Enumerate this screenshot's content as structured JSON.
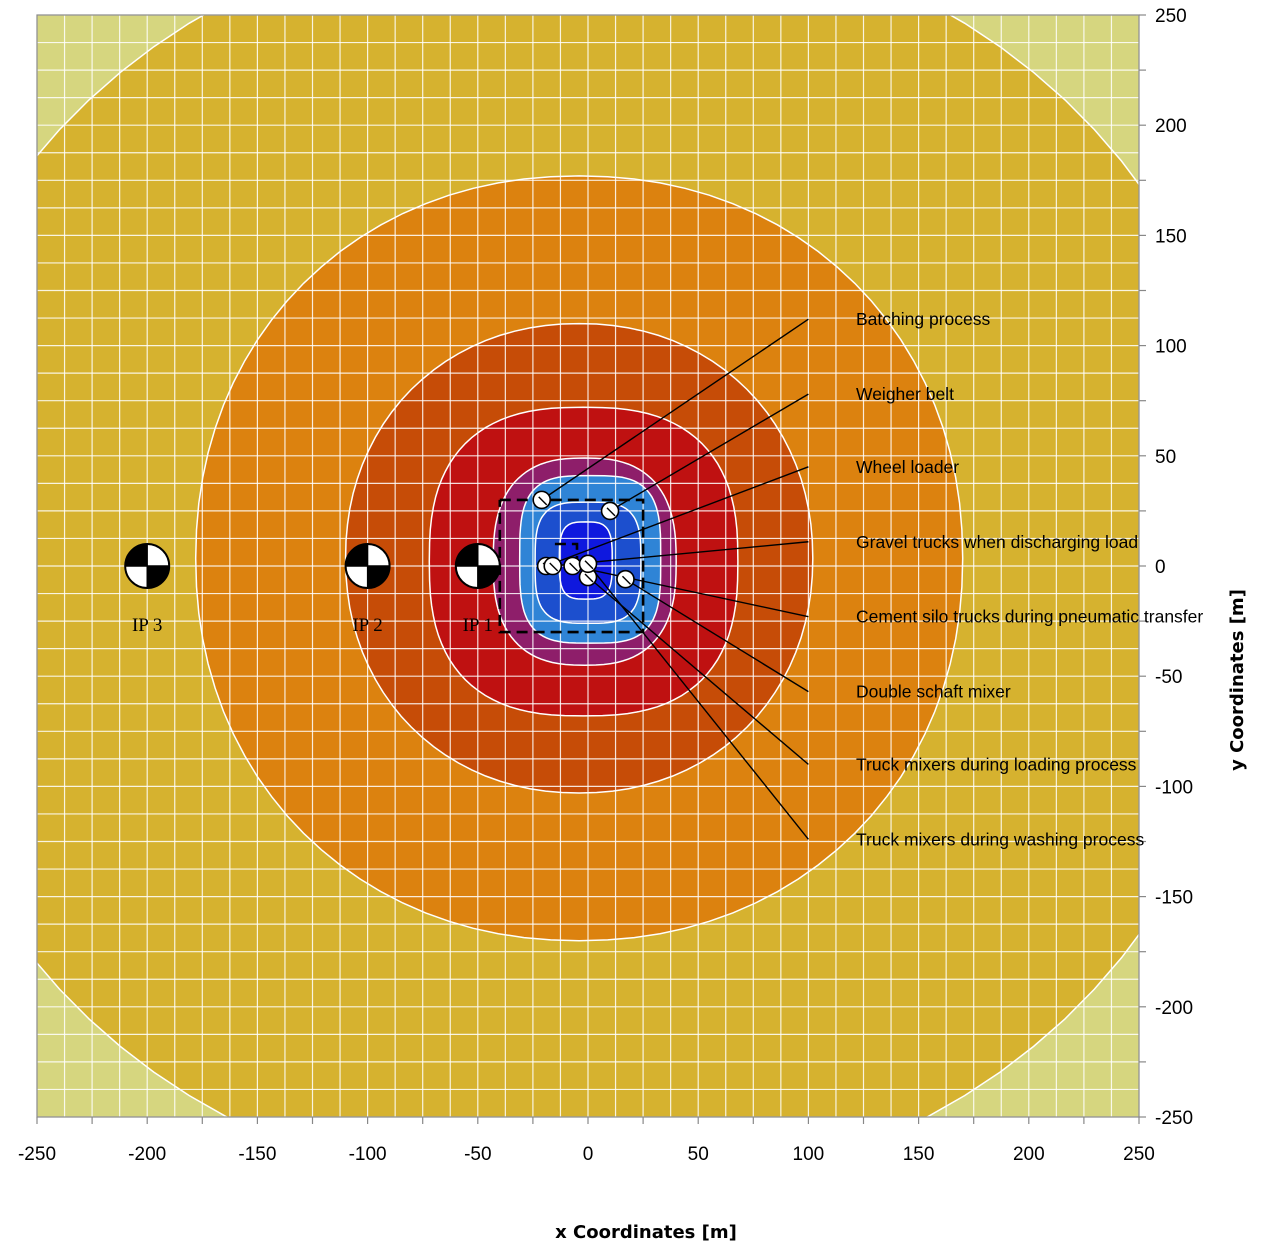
{
  "chart_data": {
    "type": "contour",
    "title": "",
    "xlabel": "x Coordinates [m]",
    "ylabel": "y Coordinates [m]",
    "xlim": [
      -250,
      250
    ],
    "ylim": [
      -250,
      250
    ],
    "x_ticks": [
      -250,
      -200,
      -150,
      -100,
      -50,
      0,
      50,
      100,
      150,
      200,
      250
    ],
    "y_ticks": [
      250,
      200,
      150,
      100,
      50,
      0,
      -50,
      -100,
      -150,
      -200,
      -250
    ],
    "grid": true,
    "contour_bands": [
      {
        "color": "#d6d67f",
        "x_extent": [
          -400,
          400
        ],
        "y_extent": [
          -400,
          400
        ]
      },
      {
        "color": "#d6b22f",
        "x_extent": [
          -313,
          303
        ],
        "y_extent": [
          -287,
          293
        ]
      },
      {
        "color": "#dc820f",
        "x_extent": [
          -178,
          170
        ],
        "y_extent": [
          -170,
          177
        ]
      },
      {
        "color": "#c64c07",
        "x_extent": [
          -110,
          102
        ],
        "y_extent": [
          -103,
          110
        ]
      },
      {
        "color": "#bf1111",
        "x_extent": [
          -72,
          68
        ],
        "y_extent": [
          -68,
          72
        ]
      },
      {
        "color": "#8e1e6a",
        "x_extent": [
          -43,
          40
        ],
        "y_extent": [
          -45,
          49
        ]
      },
      {
        "color": "#2f84d6",
        "x_extent": [
          -31,
          33
        ],
        "y_extent": [
          -35,
          41
        ]
      },
      {
        "color": "#1c4fce",
        "x_extent": [
          -24,
          24
        ],
        "y_extent": [
          -26,
          29
        ]
      },
      {
        "color": "#0f18de",
        "x_extent": [
          -13,
          11
        ],
        "y_extent": [
          -15,
          20
        ]
      }
    ],
    "sources": [
      {
        "name": "Batching process",
        "x": -21,
        "y": 30
      },
      {
        "name": "Weigher belt",
        "x": 10,
        "y": 25
      },
      {
        "name": "Wheel loader",
        "x": -19,
        "y": 0
      },
      {
        "name": "Gravel trucks when discharging load",
        "x": -16,
        "y": 0
      },
      {
        "name": "Cement silo trucks during pneumatic transfer",
        "x": -7,
        "y": 0
      },
      {
        "name": "Double schaft mixer",
        "x": 17,
        "y": -6
      },
      {
        "name": "Truck mixers during loading process",
        "x": 0,
        "y": -5
      },
      {
        "name": "Truck mixers during washing process",
        "x": 0,
        "y": 1
      }
    ],
    "leader_line_ends": [
      {
        "x": 100,
        "y": 112
      },
      {
        "x": 100,
        "y": 78
      },
      {
        "x": 100,
        "y": 45
      },
      {
        "x": 100,
        "y": 11
      },
      {
        "x": 100,
        "y": -23
      },
      {
        "x": 100,
        "y": -57
      },
      {
        "x": 100,
        "y": -90
      },
      {
        "x": 100,
        "y": -124
      }
    ],
    "immission_points": [
      {
        "name": "IP 3",
        "x": -200,
        "y": 0
      },
      {
        "name": "IP 2",
        "x": -100,
        "y": 0
      },
      {
        "name": "IP 1",
        "x": -50,
        "y": 0
      }
    ],
    "site_boundary": [
      [
        -40,
        30
      ],
      [
        25,
        30
      ],
      [
        25,
        -30
      ],
      [
        -40,
        -30
      ],
      [
        -40,
        30
      ]
    ],
    "inner_boundary": [
      [
        -15,
        10
      ],
      [
        -5,
        10
      ],
      [
        -5,
        0
      ]
    ]
  }
}
